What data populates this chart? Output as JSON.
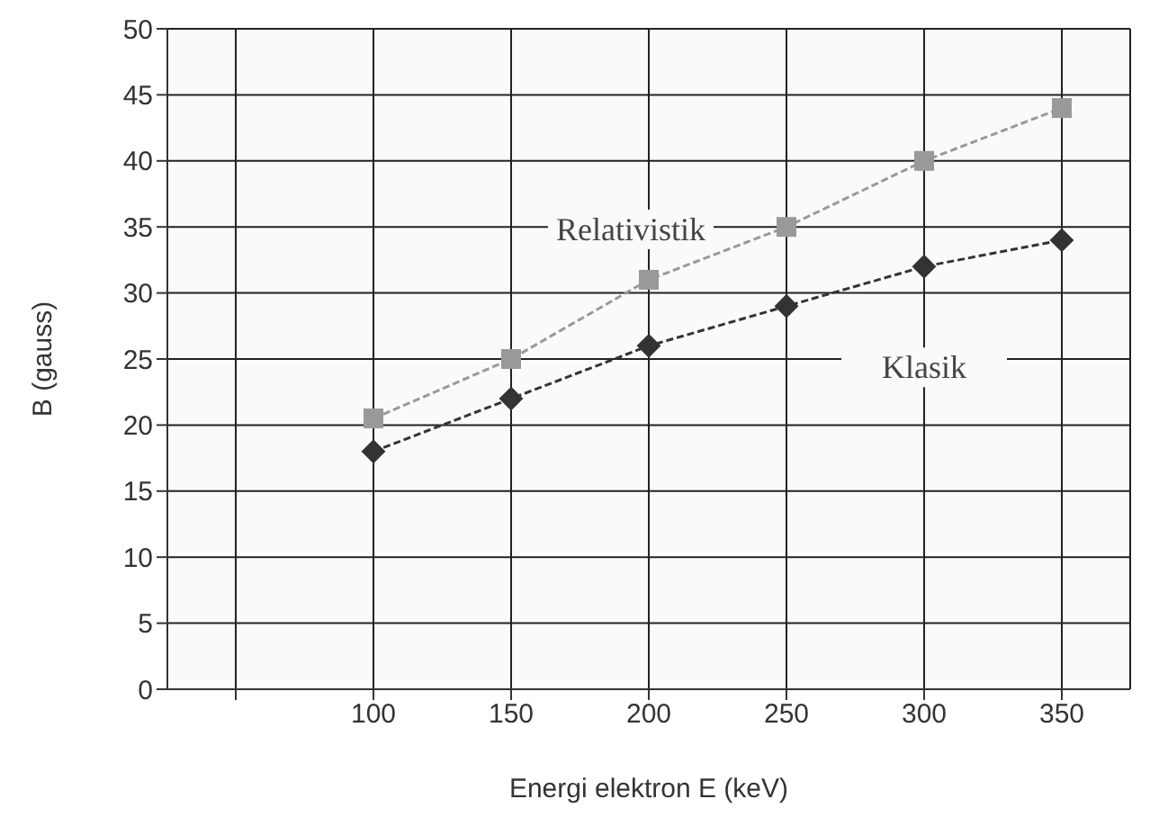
{
  "chart_data": {
    "type": "line",
    "xlabel": "Energi elektron E (keV)",
    "ylabel": "B (gauss)",
    "categories": [
      null,
      "100",
      "150",
      "200",
      "250",
      "300",
      "350"
    ],
    "series": [
      {
        "name": "Relativistik",
        "color": "#999999",
        "marker": "square",
        "values": [
          null,
          20.5,
          25,
          31,
          35,
          40,
          44
        ]
      },
      {
        "name": "Klasik",
        "color": "#333333",
        "marker": "diamond",
        "values": [
          null,
          18,
          22,
          26,
          29,
          32,
          34
        ]
      }
    ],
    "ylim": [
      0,
      50
    ],
    "yticks": [
      0,
      5,
      10,
      15,
      20,
      25,
      30,
      35,
      40,
      45,
      50
    ],
    "grid": true,
    "legend": false,
    "line_style": "dashed"
  }
}
